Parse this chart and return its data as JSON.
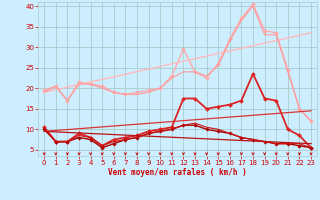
{
  "bg_color": "#cceeff",
  "grid_color": "#aacccc",
  "xlabel": "Vent moyen/en rafales ( km/h )",
  "xlabel_color": "#cc0000",
  "tick_color": "#cc0000",
  "xlim": [
    -0.5,
    23.5
  ],
  "ylim": [
    3.5,
    41
  ],
  "yticks": [
    5,
    10,
    15,
    20,
    25,
    30,
    35,
    40
  ],
  "xticks": [
    0,
    1,
    2,
    3,
    4,
    5,
    6,
    7,
    8,
    9,
    10,
    11,
    12,
    13,
    14,
    15,
    16,
    17,
    18,
    19,
    20,
    21,
    22,
    23
  ],
  "lines": [
    {
      "x": [
        0,
        1,
        2,
        3,
        4,
        5,
        6,
        7,
        8,
        9,
        10,
        11,
        12,
        13,
        14,
        15,
        16,
        17,
        18,
        19,
        20,
        21,
        22,
        23
      ],
      "y": [
        19.5,
        20.5,
        17,
        21.5,
        21,
        20.5,
        19,
        18.5,
        19,
        19.5,
        20,
        23,
        29.5,
        24,
        22.5,
        26,
        32,
        37,
        40.5,
        34,
        33.5,
        24.5,
        15,
        12
      ],
      "color": "#ffaaaa",
      "lw": 1.0,
      "marker": "D",
      "ms": 2.0
    },
    {
      "x": [
        0,
        23
      ],
      "y": [
        19.0,
        33.5
      ],
      "color": "#ffbbbb",
      "lw": 1.0,
      "marker": null,
      "ms": 0
    },
    {
      "x": [
        0,
        1,
        2,
        3,
        4,
        5,
        6,
        7,
        8,
        9,
        10,
        11,
        12,
        13,
        14,
        15,
        16,
        17,
        18,
        19,
        20,
        21,
        22,
        23
      ],
      "y": [
        19.0,
        20.5,
        17,
        21,
        21,
        20,
        19,
        18.5,
        18.5,
        19,
        20,
        22.5,
        24,
        24,
        23,
        25.5,
        31.5,
        36.5,
        40,
        33,
        33,
        24,
        15,
        12
      ],
      "color": "#ff9999",
      "lw": 0.8,
      "marker": null,
      "ms": 0
    },
    {
      "x": [
        0,
        1,
        2,
        3,
        4,
        5,
        6,
        7,
        8,
        9,
        10,
        11,
        12,
        13,
        14,
        15,
        16,
        17,
        18,
        19,
        20,
        21,
        22,
        23
      ],
      "y": [
        10.5,
        7,
        7,
        9,
        8,
        6,
        7.5,
        8,
        8.5,
        9.5,
        10,
        10.5,
        17.5,
        17.5,
        15,
        15.5,
        16,
        17,
        23.5,
        17.5,
        17,
        10,
        8.5,
        5.5
      ],
      "color": "#dd2222",
      "lw": 1.3,
      "marker": "D",
      "ms": 2.0
    },
    {
      "x": [
        0,
        23
      ],
      "y": [
        9.5,
        14.5
      ],
      "color": "#dd3333",
      "lw": 0.9,
      "marker": null,
      "ms": 0
    },
    {
      "x": [
        0,
        1,
        2,
        3,
        4,
        5,
        6,
        7,
        8,
        9,
        10,
        11,
        12,
        13,
        14,
        15,
        16,
        17,
        18,
        19,
        20,
        21,
        22,
        23
      ],
      "y": [
        10,
        7,
        7,
        8,
        7.5,
        5.5,
        6.5,
        7.5,
        8,
        9,
        9.5,
        10,
        11,
        11,
        10,
        9.5,
        9,
        8,
        7.5,
        7,
        6.5,
        6.5,
        6,
        5.5
      ],
      "color": "#aa0000",
      "lw": 1.0,
      "marker": "D",
      "ms": 1.8
    },
    {
      "x": [
        0,
        23
      ],
      "y": [
        9.5,
        6.5
      ],
      "color": "#bb1111",
      "lw": 0.9,
      "marker": null,
      "ms": 0
    },
    {
      "x": [
        0,
        1,
        2,
        3,
        4,
        5,
        6,
        7,
        8,
        9,
        10,
        11,
        12,
        13,
        14,
        15,
        16,
        17,
        18,
        19,
        20,
        21,
        22,
        23
      ],
      "y": [
        10,
        7,
        7,
        8.5,
        8,
        6,
        7,
        7.5,
        8,
        9,
        9.5,
        10,
        11,
        11.5,
        10.5,
        10,
        9,
        8,
        7.5,
        7,
        6.5,
        6.5,
        6.5,
        5.5
      ],
      "color": "#cc1111",
      "lw": 0.8,
      "marker": null,
      "ms": 0
    }
  ],
  "arrow_color": "#cc0000",
  "arrow_count": 24,
  "figsize": [
    3.2,
    2.0
  ],
  "dpi": 100
}
